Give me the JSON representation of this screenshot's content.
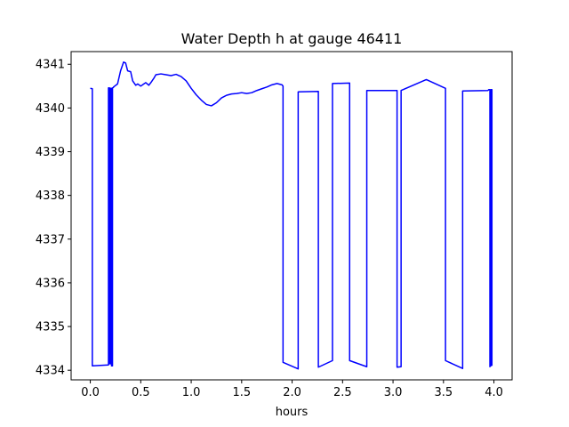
{
  "chart_data": {
    "type": "line",
    "title": "Water Depth h at gauge 46411",
    "xlabel": "hours",
    "ylabel": "",
    "xlim": [
      -0.19,
      4.18
    ],
    "ylim": [
      4333.78,
      4341.29
    ],
    "xticks": [
      0.0,
      0.5,
      1.0,
      1.5,
      2.0,
      2.5,
      3.0,
      3.5,
      4.0
    ],
    "xtick_labels": [
      "0.0",
      "0.5",
      "1.0",
      "1.5",
      "2.0",
      "2.5",
      "3.0",
      "3.5",
      "4.0"
    ],
    "yticks": [
      4334,
      4335,
      4336,
      4337,
      4338,
      4339,
      4340,
      4341
    ],
    "ytick_labels": [
      "4334",
      "4335",
      "4336",
      "4337",
      "4338",
      "4339",
      "4340",
      "4341"
    ],
    "grid": false,
    "colors": {
      "line": "#0000ff",
      "axes": "#000000",
      "background": "#ffffff"
    },
    "series": [
      {
        "x": [
          0.0,
          0.02,
          0.02,
          0.18,
          0.18,
          0.19,
          0.19,
          0.2,
          0.2,
          0.21,
          0.21,
          0.22,
          0.22,
          0.23,
          0.23,
          0.27,
          0.3,
          0.33,
          0.35,
          0.37,
          0.4,
          0.42,
          0.45,
          0.47,
          0.5,
          0.53,
          0.55,
          0.58,
          0.6,
          0.63,
          0.65,
          0.7,
          0.75,
          0.8,
          0.85,
          0.9,
          0.95,
          1.0,
          1.05,
          1.1,
          1.15,
          1.2,
          1.25,
          1.3,
          1.35,
          1.4,
          1.45,
          1.5,
          1.55,
          1.6,
          1.65,
          1.7,
          1.75,
          1.8,
          1.85,
          1.9,
          1.91,
          1.91,
          2.06,
          2.06,
          2.26,
          2.26,
          2.4,
          2.4,
          2.57,
          2.57,
          2.74,
          2.74,
          3.04,
          3.04,
          3.08,
          3.08,
          3.2,
          3.33,
          3.52,
          3.52,
          3.69,
          3.69,
          3.94,
          3.95,
          3.96,
          3.96,
          3.96,
          3.97,
          3.97,
          3.98,
          3.98
        ],
        "y": [
          4340.45,
          4340.44,
          4334.1,
          4334.12,
          4340.46,
          4340.46,
          4334.15,
          4334.15,
          4340.45,
          4340.45,
          4334.1,
          4334.1,
          4340.46,
          4340.47,
          4340.48,
          4340.55,
          4340.85,
          4341.05,
          4341.03,
          4340.85,
          4340.83,
          4340.62,
          4340.52,
          4340.55,
          4340.5,
          4340.55,
          4340.58,
          4340.52,
          4340.58,
          4340.68,
          4340.76,
          4340.78,
          4340.76,
          4340.74,
          4340.77,
          4340.72,
          4340.62,
          4340.45,
          4340.3,
          4340.18,
          4340.08,
          4340.05,
          4340.12,
          4340.23,
          4340.29,
          4340.32,
          4340.33,
          4340.35,
          4340.33,
          4340.35,
          4340.4,
          4340.44,
          4340.48,
          4340.53,
          4340.56,
          4340.53,
          4340.5,
          4334.18,
          4334.03,
          4340.37,
          4340.38,
          4334.07,
          4334.22,
          4340.56,
          4340.57,
          4334.22,
          4334.08,
          4340.4,
          4340.4,
          4334.07,
          4334.08,
          4340.4,
          4340.52,
          4340.65,
          4340.45,
          4334.22,
          4334.04,
          4340.39,
          4340.4,
          4340.42,
          4340.42,
          4334.08,
          4340.42,
          4334.1,
          4340.42,
          4340.42,
          4334.1
        ]
      }
    ]
  }
}
